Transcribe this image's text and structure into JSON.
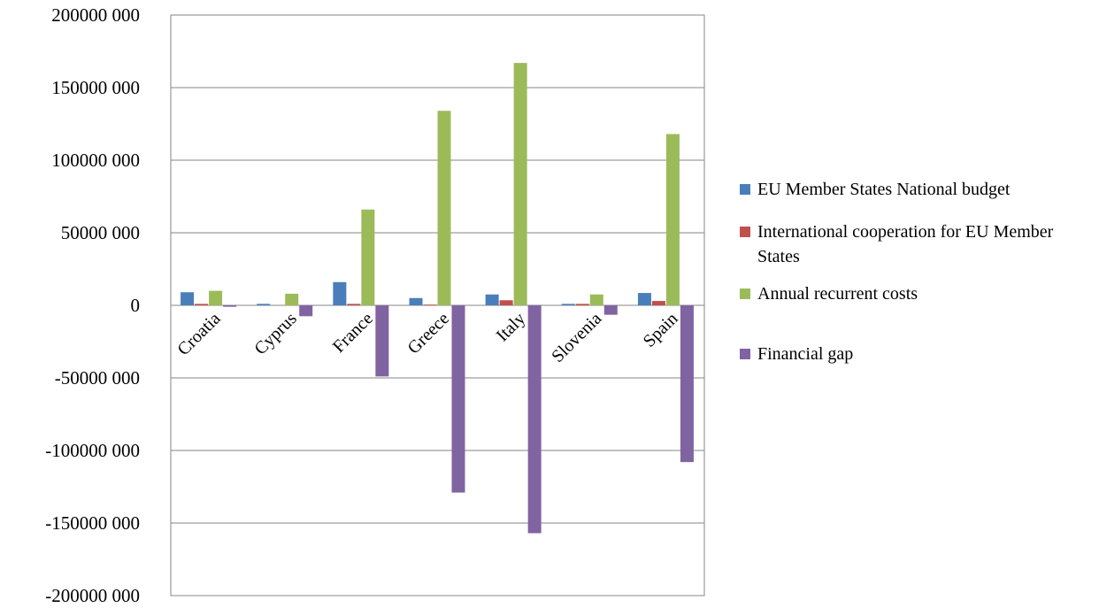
{
  "chart_data": {
    "type": "bar",
    "title": "",
    "xlabel": "",
    "ylabel": "",
    "ylim": [
      -200000000,
      200000000
    ],
    "yticks": [
      200000000,
      150000000,
      100000000,
      50000000,
      0,
      -50000000,
      -100000000,
      -150000000,
      -200000000
    ],
    "ytick_labels": [
      "200000 000",
      "150000 000",
      "100000 000",
      "50000 000",
      "0",
      "-50000 000",
      "-100000 000",
      "-150000 000",
      "-200000 000"
    ],
    "grid": true,
    "legend_position": "right",
    "categories": [
      "Croatia",
      "Cyprus",
      "France",
      "Greece",
      "Italy",
      "Slovenia",
      "Spain"
    ],
    "series": [
      {
        "name": "EU Member States National budget",
        "color": "#4a7ebb",
        "values": [
          9000000,
          1000000,
          16000000,
          5000000,
          7500000,
          1000000,
          8500000
        ]
      },
      {
        "name": "International cooperation for EU Member States",
        "color": "#c0504d",
        "values": [
          1000000,
          0,
          1000000,
          500000,
          3500000,
          1000000,
          3000000
        ]
      },
      {
        "name": "Annual recurrent costs",
        "color": "#9bbb59",
        "values": [
          10000000,
          8000000,
          66000000,
          134000000,
          167000000,
          7500000,
          118000000
        ]
      },
      {
        "name": "Financial gap",
        "color": "#8064a2",
        "values": [
          -1000000,
          -7500000,
          -49000000,
          -129000000,
          -157000000,
          -6500000,
          -108000000
        ]
      }
    ]
  }
}
